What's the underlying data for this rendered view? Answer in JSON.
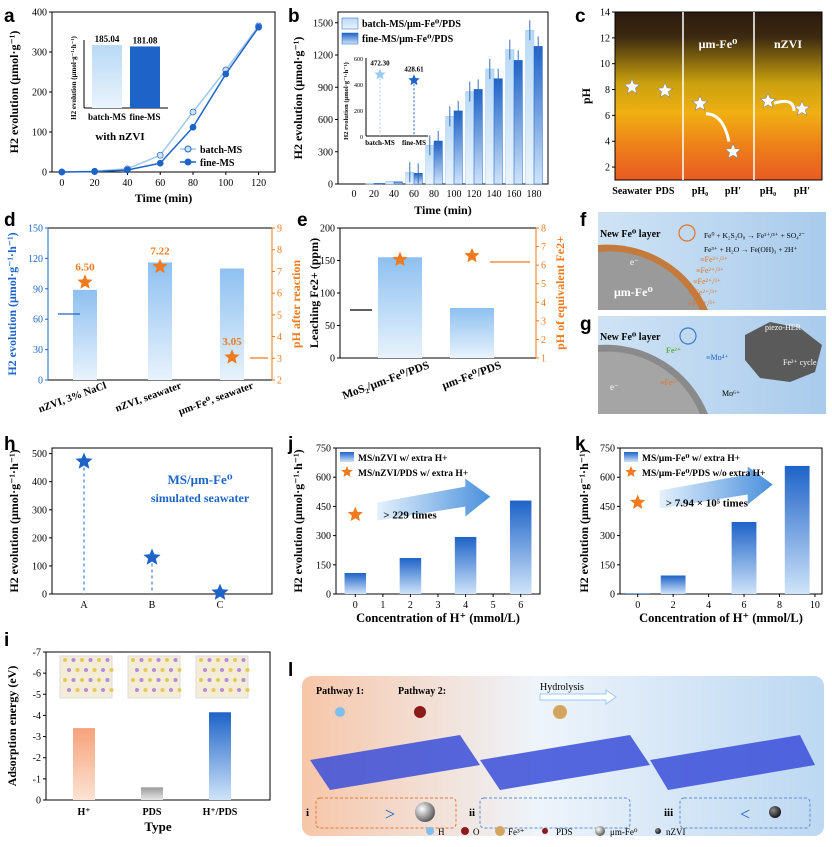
{
  "panels": {
    "a": {
      "label": "a"
    },
    "b": {
      "label": "b"
    },
    "c": {
      "label": "c"
    },
    "d": {
      "label": "d"
    },
    "e": {
      "label": "e"
    },
    "f": {
      "label": "f"
    },
    "g": {
      "label": "g"
    },
    "h": {
      "label": "h"
    },
    "i": {
      "label": "i"
    },
    "j": {
      "label": "j"
    },
    "k": {
      "label": "k"
    },
    "l": {
      "label": "l"
    }
  },
  "colors": {
    "light_blue": "#9ec9f0",
    "dark_blue": "#1e63c8",
    "orange": "#f07a1e",
    "pale_orange": "#f6c3a6",
    "grey": "#b0b0b0"
  },
  "chart_data": [
    {
      "id": "a",
      "type": "line",
      "xlabel": "Time (min)",
      "ylabel": "H2 evolution (μmol·g⁻¹)",
      "xlim": [
        0,
        130
      ],
      "ylim": [
        0,
        400
      ],
      "xticks": [
        0,
        20,
        40,
        60,
        80,
        100,
        120
      ],
      "yticks": [
        0,
        100,
        200,
        300,
        400
      ],
      "x": [
        0,
        20,
        40,
        60,
        80,
        100,
        120
      ],
      "series": [
        {
          "name": "batch-MS",
          "values": [
            0,
            2,
            8,
            42,
            150,
            255,
            365
          ]
        },
        {
          "name": "fine-MS",
          "values": [
            0,
            1,
            5,
            22,
            112,
            245,
            362
          ]
        }
      ],
      "inset": {
        "type": "bar",
        "title": "with nZVI",
        "ylabel": "H2 evolution (μmol·g⁻¹·h⁻¹)",
        "categories": [
          "batch-MS",
          "fine-MS"
        ],
        "values": [
          185.04,
          181.08
        ],
        "value_labels": [
          "185.04",
          "181.08"
        ]
      }
    },
    {
      "id": "b",
      "type": "bar",
      "xlabel": "Time (min)",
      "ylabel": "H2 evolution (μmol·g⁻¹)",
      "ylim": [
        0,
        1600
      ],
      "yticks": [
        0,
        300,
        600,
        900,
        1200,
        1500
      ],
      "categories": [
        "0",
        "20",
        "40",
        "60",
        "80",
        "100",
        "120",
        "140",
        "160",
        "180"
      ],
      "series": [
        {
          "name": "batch-MS/μm-Fe⁰/PDS",
          "values": [
            0,
            8,
            25,
            110,
            360,
            630,
            860,
            1070,
            1250,
            1430
          ]
        },
        {
          "name": "fine-MS/μm-Fe⁰/PDS",
          "values": [
            0,
            6,
            20,
            100,
            400,
            680,
            880,
            980,
            1150,
            1280
          ]
        }
      ],
      "inset": {
        "ylabel": "H2 evolution (μmol·g⁻¹·h⁻¹)",
        "yticks": [
          0,
          200,
          400,
          600
        ],
        "categories": [
          "batch-MS",
          "fine-MS"
        ],
        "values": [
          472.3,
          428.61
        ],
        "value_labels": [
          "472.30",
          "428.61"
        ]
      }
    },
    {
      "id": "c",
      "type": "scatter",
      "ylabel": "pH",
      "ylim": [
        1,
        14
      ],
      "yticks": [
        2,
        4,
        6,
        8,
        10,
        12,
        14
      ],
      "section_labels": [
        "μm-Fe⁰",
        "nZVI"
      ],
      "categories": [
        "Seawater",
        "PDS",
        "pH₀",
        "pH′",
        "pH₀",
        "pH′"
      ],
      "values": [
        8.2,
        7.9,
        6.9,
        3.2,
        7.1,
        6.5
      ]
    },
    {
      "id": "d",
      "type": "bar",
      "ylabel": "H2 evolution (μmol·g⁻¹·h⁻¹)",
      "y2label": "pH after reaction",
      "ylim": [
        0,
        150
      ],
      "yticks": [
        0,
        30,
        60,
        90,
        120,
        150
      ],
      "y2lim": [
        2,
        9
      ],
      "y2ticks": [
        2,
        3,
        4,
        5,
        6,
        7,
        8,
        9
      ],
      "categories": [
        "nZVI, 3% NaCl",
        "nZVI, seawater",
        "μm-Fe⁰, seawater"
      ],
      "values": [
        89,
        116,
        110
      ],
      "ph": [
        6.5,
        7.22,
        3.05
      ],
      "ph_labels": [
        "6.50",
        "7.22",
        "3.05"
      ]
    },
    {
      "id": "e",
      "type": "bar",
      "ylabel": "Leaching Fe2+ (ppm)",
      "y2label": "pH of equivalent Fe2+",
      "ylim": [
        0,
        200
      ],
      "yticks": [
        0,
        50,
        100,
        150,
        200
      ],
      "y2lim": [
        1,
        8
      ],
      "y2ticks": [
        1,
        2,
        3,
        4,
        5,
        6,
        7,
        8
      ],
      "categories": [
        "MoS₂/μm-Fe⁰/PDS",
        "μm-Fe⁰/PDS"
      ],
      "values": [
        155,
        77
      ],
      "ph": [
        6.3,
        6.5
      ]
    },
    {
      "id": "h",
      "type": "scatter",
      "ylabel": "H2 evolution (μmol·g⁻¹·h⁻¹)",
      "ylim": [
        0,
        520
      ],
      "yticks": [
        0,
        100,
        200,
        300,
        400,
        500
      ],
      "categories": [
        "A",
        "B",
        "C"
      ],
      "values": [
        472,
        130,
        5
      ],
      "annotation": [
        "MS/μm-Fe⁰",
        "simulated seawater"
      ]
    },
    {
      "id": "i",
      "type": "bar",
      "xlabel": "Type",
      "ylabel": "Adsorption energy (eV)",
      "ylim": [
        0,
        -7
      ],
      "yticks": [
        0,
        -1,
        -2,
        -3,
        -4,
        -5,
        -6,
        -7
      ],
      "categories": [
        "H⁺",
        "PDS",
        "H⁺/PDS"
      ],
      "values": [
        -3.4,
        -0.6,
        -4.15
      ]
    },
    {
      "id": "j",
      "type": "bar",
      "xlabel": "Concentration of H⁺ (mmol/L)",
      "ylabel": "H2 evolution (μmol·g⁻¹·h⁻¹)",
      "xlim": [
        -0.7,
        6.7
      ],
      "xticks": [
        0,
        1,
        2,
        3,
        4,
        5,
        6
      ],
      "ylim": [
        0,
        750
      ],
      "yticks": [
        0,
        150,
        300,
        450,
        600,
        750
      ],
      "series": [
        {
          "name": "MS/nZVI w/ extra H+",
          "x": [
            0,
            2,
            4,
            6
          ],
          "values": [
            108,
            185,
            293,
            480
          ]
        },
        {
          "name": "MS/nZVI/PDS w/ extra H+",
          "x": [
            0
          ],
          "values": [
            408
          ]
        }
      ],
      "annotation": "> 229 times"
    },
    {
      "id": "k",
      "type": "bar",
      "xlabel": "Concentration of H⁺ (mmol/L)",
      "ylabel": "H2 evolution (μmol·g⁻¹·h⁻¹)",
      "xlim": [
        -1,
        10.4
      ],
      "xticks": [
        0,
        2,
        4,
        6,
        8,
        10
      ],
      "ylim": [
        0,
        750
      ],
      "yticks": [
        0,
        150,
        300,
        450,
        600,
        750
      ],
      "series": [
        {
          "name": "MS/μm-Fe⁰ w/ extra H+",
          "x": [
            0,
            2,
            6,
            9
          ],
          "values": [
            5,
            95,
            370,
            658
          ]
        },
        {
          "name": "MS/μm-Fe⁰/PDS w/o extra H+",
          "x": [
            0
          ],
          "values": [
            470
          ]
        }
      ],
      "annotation": "> 7.94 × 10⁵ times"
    }
  ],
  "schematic_f": {
    "layer": "New Fe⁰ layer",
    "core": "μm-Fe⁰",
    "eq1": "Fe⁰ + K₂S₂O₈ → Fe²⁺/³⁺ + SO₄²⁻",
    "eq2": "Fe³⁺ + H₂O → Fe(OH)₃ + 2H⁺",
    "ions": [
      "≡Fe²⁺/³⁺",
      "≡Fe²⁺/³⁺",
      "≡Fe²⁺/³⁺",
      "≡Fe²⁺/³⁺",
      "≡Fe²⁺/³⁺"
    ],
    "electron": "e⁻"
  },
  "schematic_g": {
    "layer": "New Fe⁰ layer",
    "mo4": "≡Mo⁴⁺",
    "mo6": "Mo⁶⁺",
    "fe2": "Fe²⁺",
    "fe3": "≡Fe³⁺",
    "piezo": "piezo-HER",
    "cycle": "Fe²⁺ cycle",
    "electron": "e⁻"
  },
  "schematic_l": {
    "pathway1": "Pathway 1:",
    "pathway2": "Pathway 2:",
    "hydrolysis": "Hydrolysis",
    "box_labels": [
      "i",
      "ii",
      "iii"
    ],
    "legend": [
      "H",
      "O",
      "Fe³⁺",
      "PDS",
      "μm-Fe⁰",
      "nZVI"
    ]
  }
}
